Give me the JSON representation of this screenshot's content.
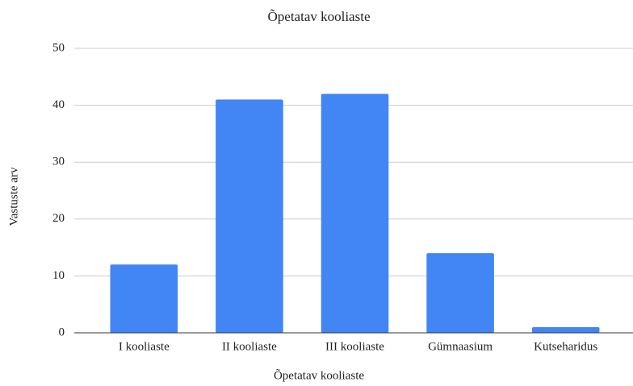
{
  "chart_data": {
    "type": "bar",
    "title": "Õpetatav kooliaste",
    "x_label": "Õpetatav kooliaste",
    "y_label": "Vastuste arv",
    "categories": [
      "I kooliaste",
      "II kooliaste",
      "III kooliaste",
      "Gümnaasium",
      "Kutseharidus"
    ],
    "values": [
      12,
      41,
      42,
      14,
      1
    ],
    "color": "#4285f4",
    "ylim": [
      0,
      50
    ],
    "yticks": [
      0,
      10,
      20,
      30,
      40,
      50
    ],
    "grid": true
  }
}
